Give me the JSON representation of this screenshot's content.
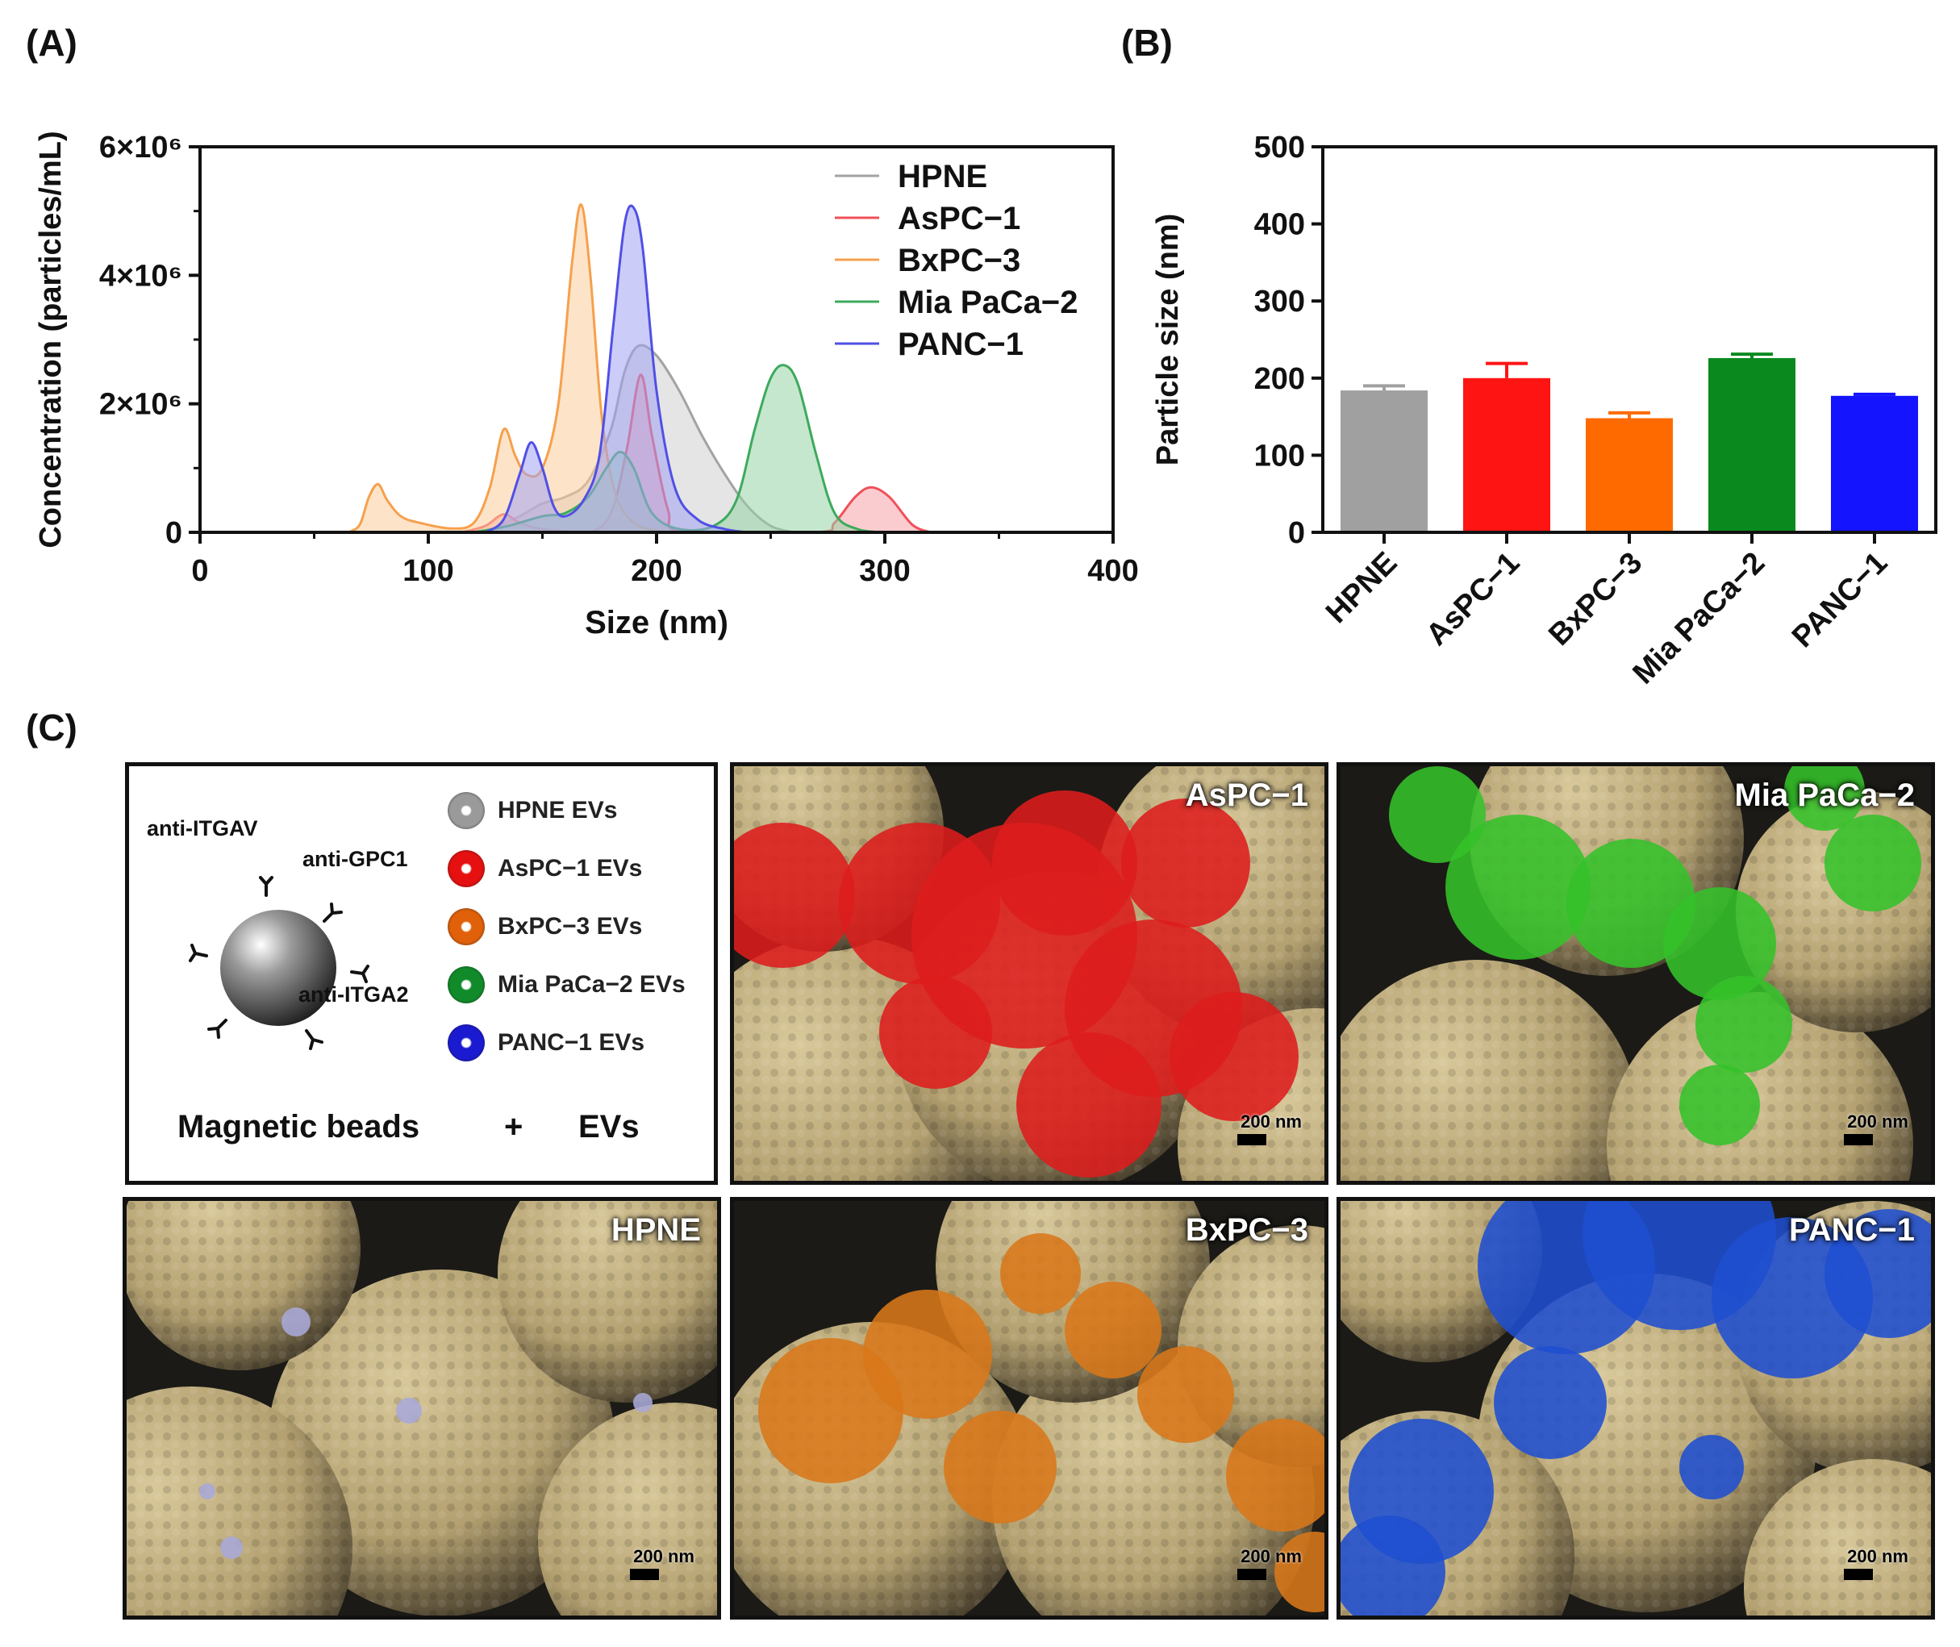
{
  "panels": {
    "a": "(A)",
    "b": "(B)",
    "c": "(C)"
  },
  "chart_data": [
    {
      "type": "area",
      "xlabel": "Size (nm)",
      "ylabel": "Concentration (particles/mL)",
      "xlim": [
        0,
        400
      ],
      "ylim": [
        0,
        6000000
      ],
      "x_ticks": [
        "0",
        "100",
        "200",
        "300",
        "400"
      ],
      "y_ticks": [
        {
          "label": "0",
          "value": 0
        },
        {
          "label": "2×10⁶",
          "value": 2000000
        },
        {
          "label": "4×10⁶",
          "value": 4000000
        },
        {
          "label": "6×10⁶",
          "value": 6000000
        }
      ],
      "legend_position": "top-right",
      "grid": false,
      "series": [
        {
          "name": "HPNE",
          "color": "#a3a3a3",
          "fill": "#cfcfcf",
          "points": [
            [
              110,
              0
            ],
            [
              125,
              30000
            ],
            [
              140,
              250000
            ],
            [
              150,
              450000
            ],
            [
              160,
              550000
            ],
            [
              170,
              800000
            ],
            [
              180,
              1600000
            ],
            [
              186,
              2500000
            ],
            [
              192,
              2900000
            ],
            [
              200,
              2750000
            ],
            [
              210,
              2200000
            ],
            [
              220,
              1500000
            ],
            [
              230,
              900000
            ],
            [
              240,
              400000
            ],
            [
              250,
              100000
            ],
            [
              260,
              0
            ]
          ]
        },
        {
          "name": "AsPC-1",
          "color": "#f0505a",
          "fill": "#f7a3a8",
          "points": [
            [
              115,
              0
            ],
            [
              125,
              100000
            ],
            [
              133,
              280000
            ],
            [
              140,
              150000
            ],
            [
              150,
              50000
            ],
            [
              170,
              0
            ],
            [
              180,
              300000
            ],
            [
              187,
              1300000
            ],
            [
              193,
              2450000
            ],
            [
              198,
              1500000
            ],
            [
              205,
              350000
            ],
            [
              212,
              0
            ],
            [
              270,
              0
            ],
            [
              278,
              150000
            ],
            [
              287,
              550000
            ],
            [
              294,
              700000
            ],
            [
              302,
              550000
            ],
            [
              312,
              120000
            ],
            [
              320,
              0
            ]
          ]
        },
        {
          "name": "BxPC-3",
          "color": "#f6a04d",
          "fill": "#fbcd9c",
          "points": [
            [
              65,
              0
            ],
            [
              70,
              120000
            ],
            [
              74,
              550000
            ],
            [
              78,
              750000
            ],
            [
              82,
              500000
            ],
            [
              88,
              250000
            ],
            [
              96,
              150000
            ],
            [
              110,
              60000
            ],
            [
              120,
              150000
            ],
            [
              127,
              700000
            ],
            [
              133,
              1600000
            ],
            [
              138,
              1200000
            ],
            [
              143,
              900000
            ],
            [
              150,
              1000000
            ],
            [
              157,
              2000000
            ],
            [
              163,
              4200000
            ],
            [
              167,
              5100000
            ],
            [
              171,
              4000000
            ],
            [
              176,
              1800000
            ],
            [
              182,
              600000
            ],
            [
              190,
              150000
            ],
            [
              200,
              30000
            ],
            [
              210,
              0
            ]
          ]
        },
        {
          "name": "Mia PaCa-2",
          "color": "#3daa5c",
          "fill": "#96d3a5",
          "points": [
            [
              120,
              0
            ],
            [
              135,
              100000
            ],
            [
              150,
              250000
            ],
            [
              160,
              300000
            ],
            [
              170,
              550000
            ],
            [
              178,
              1000000
            ],
            [
              184,
              1250000
            ],
            [
              190,
              1000000
            ],
            [
              198,
              300000
            ],
            [
              210,
              50000
            ],
            [
              225,
              100000
            ],
            [
              235,
              500000
            ],
            [
              243,
              1600000
            ],
            [
              250,
              2400000
            ],
            [
              256,
              2600000
            ],
            [
              262,
              2300000
            ],
            [
              270,
              1200000
            ],
            [
              278,
              300000
            ],
            [
              288,
              50000
            ],
            [
              300,
              0
            ]
          ]
        },
        {
          "name": "PANC-1",
          "color": "#5050e6",
          "fill": "#a3a3f2",
          "points": [
            [
              125,
              0
            ],
            [
              133,
              200000
            ],
            [
              140,
              900000
            ],
            [
              145,
              1400000
            ],
            [
              150,
              1000000
            ],
            [
              155,
              400000
            ],
            [
              160,
              250000
            ],
            [
              168,
              500000
            ],
            [
              175,
              1200000
            ],
            [
              181,
              3200000
            ],
            [
              186,
              4800000
            ],
            [
              190,
              5050000
            ],
            [
              194,
              4400000
            ],
            [
              200,
              2200000
            ],
            [
              208,
              700000
            ],
            [
              218,
              200000
            ],
            [
              230,
              50000
            ],
            [
              240,
              0
            ]
          ]
        }
      ]
    },
    {
      "type": "bar",
      "ylabel": "Particle size (nm)",
      "ylim": [
        0,
        500
      ],
      "y_ticks": [
        0,
        100,
        200,
        300,
        400,
        500
      ],
      "categories": [
        "HPNE",
        "AsPC−1",
        "BxPC−3",
        "Mia PaCa−2",
        "PANC−1"
      ],
      "values": [
        184,
        200,
        148,
        226,
        177
      ],
      "errors": [
        6,
        19,
        7,
        5,
        2
      ],
      "colors": [
        "#a0a0a0",
        "#ff1414",
        "#ff6a00",
        "#0a8a1e",
        "#1414ff"
      ]
    }
  ],
  "schematic": {
    "antibodies": [
      "anti-ITGAV",
      "anti-GPC1",
      "anti-ITGA2"
    ],
    "ev_legend": [
      {
        "label": "HPNE EVs",
        "color": "#9a9a9a"
      },
      {
        "label": "AsPC−1 EVs",
        "color": "#e61010"
      },
      {
        "label": "BxPC−3 EVs",
        "color": "#e0610a"
      },
      {
        "label": "Mia PaCa−2 EVs",
        "color": "#118a2a"
      },
      {
        "label": "PANC−1 EVs",
        "color": "#1a1ad0"
      }
    ],
    "bottom_left": "Magnetic beads",
    "plus": "+",
    "bottom_right": "EVs"
  },
  "micrographs": [
    {
      "label": "AsPC−1",
      "ev_color": "#dd1c1c",
      "scale": "200 nm"
    },
    {
      "label": "Mia PaCa−2",
      "ev_color": "#34c22a",
      "scale": "200 nm"
    },
    {
      "label": "HPNE",
      "ev_color": "#a9a9d8",
      "scale": "200 nm"
    },
    {
      "label": "BxPC−3",
      "ev_color": "#d8781a",
      "scale": "200 nm"
    },
    {
      "label": "PANC−1",
      "ev_color": "#1f4fd0",
      "scale": "200 nm"
    }
  ],
  "bead_color": "#b3a070"
}
